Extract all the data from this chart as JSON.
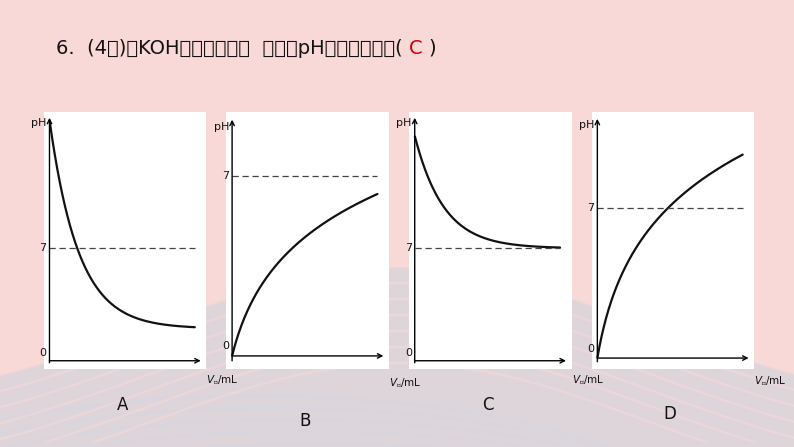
{
  "title_main": "6.  (4分)往KOH溶液中加水，  溶液的pH变化正确的是( ",
  "title_answer": "C",
  "title_end": ")",
  "title_color_main": "#111111",
  "title_color_answer": "#cc0000",
  "bg_color": "#f9d8d8",
  "box_bg": "#ffffff",
  "graph_labels": [
    "A",
    "B",
    "C",
    "D"
  ],
  "dashed_color": "#444444",
  "curve_color": "#111111",
  "wave_color": "#c8d4e0",
  "title_fontsize": 14,
  "label_fontsize": 11
}
